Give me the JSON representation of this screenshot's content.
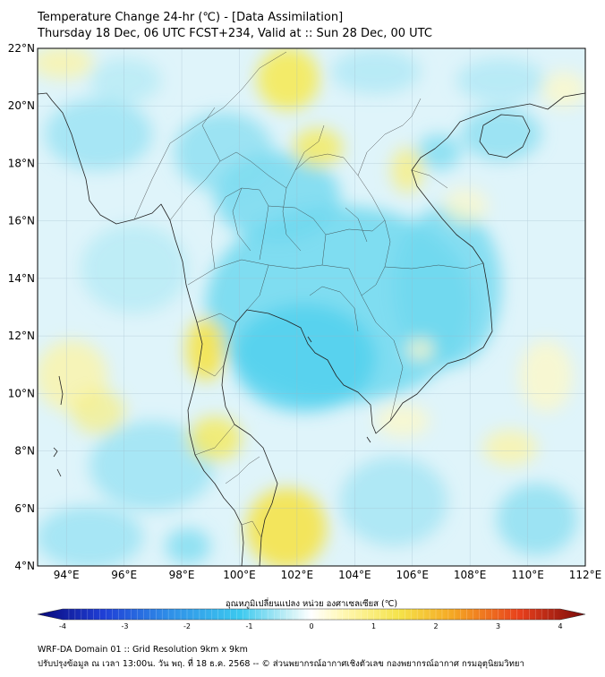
{
  "header": {
    "title": "Temperature Change 24-hr (℃) - [Data Assimilation]",
    "subtitle": "Thursday 18 Dec, 06 UTC FCST+234, Valid at :: Sun 28 Dec, 00 UTC"
  },
  "map": {
    "lat_labels": [
      "22°N",
      "20°N",
      "18°N",
      "16°N",
      "14°N",
      "12°N",
      "10°N",
      "8°N",
      "6°N",
      "4°N"
    ],
    "lon_labels": [
      "94°E",
      "96°E",
      "98°E",
      "100°E",
      "102°E",
      "104°E",
      "106°E",
      "108°E",
      "110°E",
      "112°E"
    ],
    "lat_range": [
      4,
      22
    ],
    "lon_range": [
      93,
      112
    ]
  },
  "colorbar": {
    "label": "อุณหภูมิเปลี่ยนแปลง หน่วย องศาเซลเซียส (℃)",
    "ticks": [
      "-4",
      "-3",
      "-2",
      "-1",
      "0",
      "1",
      "2",
      "3",
      "4"
    ],
    "range": [
      -4,
      4
    ],
    "colors": [
      "#08087a",
      "#1f3fd6",
      "#2f8fe8",
      "#3cc9ef",
      "#c8f0f6",
      "#ffffff",
      "#fff7b0",
      "#f5e34a",
      "#f5a623",
      "#e8401c",
      "#7a0a0a"
    ]
  },
  "footer": {
    "line1": "WRF-DA Domain 01 :: Grid Resolution 9km x 9km",
    "line2": "ปรับปรุงข้อมูล ณ เวลา 13:00น. วัน พฤ. ที่ 18 ธ.ค. 2568 -- © ส่วนพยากรณ์อากาศเชิงตัวเลข กองพยากรณ์อากาศ กรมอุตุนิยมวิทยา"
  }
}
